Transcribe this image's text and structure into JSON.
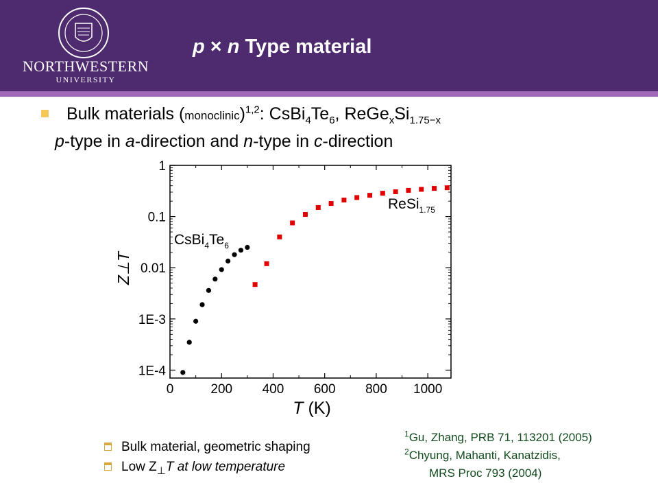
{
  "header": {
    "logo_name": "NORTHWESTERN",
    "logo_sub": "UNIVERSITY",
    "title": {
      "p": "p",
      "times": " × ",
      "n": "n",
      "rest": " Type material"
    }
  },
  "bullet1": {
    "lead": "Bulk materials (",
    "paren": "monoclinic",
    "close": ")",
    "sup": "1,2",
    "colon": ": CsBi",
    "s1": "4",
    "te": "Te",
    "s2": "6",
    "comma": ", ReGe",
    "s3": "x",
    "si": "Si",
    "s4": "1.75−x"
  },
  "bullet1_line2": {
    "p": "p",
    "t1": "-type in ",
    "a": "a",
    "t2": "-direction and ",
    "n": "n",
    "t3": "-type in ",
    "c": "c",
    "t4": "-direction"
  },
  "sub_bullets": {
    "item1": "Bulk material, geometric shaping",
    "item2_lead": "Low Z",
    "item2_sub": "⊥",
    "item2_rest": "T at low temperature"
  },
  "refs": {
    "r1_sup": "1",
    "r1": "Gu, Zhang, PRB 71, 113201 (2005)",
    "r2_sup": "2",
    "r2": "Chyung, Mahanti, Kanatzidis,",
    "r3": "MRS Proc 793 (2004)"
  },
  "colors": {
    "header": "#4e2a6e",
    "header_rule": "#a06ab8",
    "series_csbi": "#000000",
    "series_resi": "#e00000",
    "bullet": "#f5c85a",
    "refs_text": "#124a1e"
  },
  "chart_data": {
    "type": "scatter",
    "xlabel": "T (K)",
    "ylabel": "Z⊥T",
    "xlim": [
      0,
      1090
    ],
    "ylim": [
      7e-05,
      1
    ],
    "y_scale": "log",
    "x_ticks": [
      "0",
      "200",
      "400",
      "600",
      "800",
      "1000"
    ],
    "y_ticks": [
      "1E-4",
      "1E-3",
      "0.01",
      "0.1",
      "1"
    ],
    "grid": false,
    "series": [
      {
        "name": "CsBi4Te6",
        "label_parts": [
          "CsBi",
          "4",
          "Te",
          "6"
        ],
        "marker": "circle",
        "color": "#000000",
        "x": [
          50,
          75,
          100,
          125,
          150,
          175,
          200,
          225,
          250,
          275,
          300
        ],
        "y": [
          9e-05,
          0.00035,
          0.0009,
          0.0019,
          0.0036,
          0.006,
          0.0092,
          0.0135,
          0.018,
          0.022,
          0.025
        ]
      },
      {
        "name": "ReSi1.75",
        "label_parts": [
          "ReSi",
          "1.75"
        ],
        "marker": "square",
        "color": "#e00000",
        "x": [
          330,
          375,
          425,
          475,
          525,
          575,
          625,
          675,
          725,
          775,
          825,
          875,
          925,
          975,
          1025,
          1075
        ],
        "y": [
          0.0047,
          0.012,
          0.04,
          0.075,
          0.11,
          0.15,
          0.18,
          0.21,
          0.235,
          0.26,
          0.285,
          0.305,
          0.325,
          0.34,
          0.355,
          0.365
        ]
      }
    ]
  }
}
